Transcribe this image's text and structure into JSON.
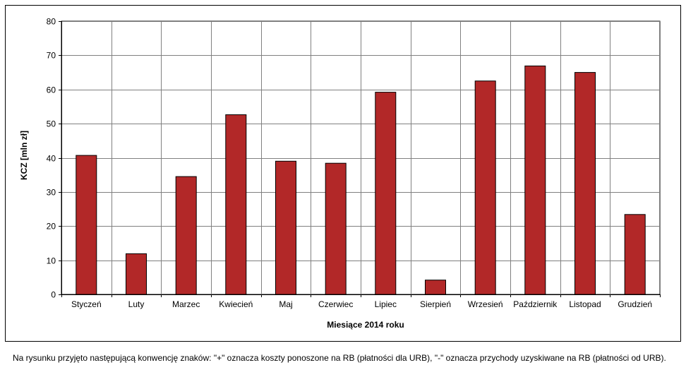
{
  "chart_data": {
    "type": "bar",
    "categories": [
      "Styczeń",
      "Luty",
      "Marzec",
      "Kwiecień",
      "Maj",
      "Czerwiec",
      "Lipiec",
      "Sierpień",
      "Wrzesień",
      "Październik",
      "Listopad",
      "Grudzień"
    ],
    "values": [
      40.7,
      11.9,
      34.5,
      52.6,
      39.0,
      38.4,
      59.2,
      4.2,
      62.5,
      66.9,
      65.0,
      23.4
    ],
    "xlabel": "Miesiące 2014 roku",
    "ylabel": "KCZ [mln zł]",
    "ylim": [
      0,
      80
    ],
    "yticks": [
      0,
      10,
      20,
      30,
      40,
      50,
      60,
      70,
      80
    ],
    "grid": true,
    "bar_color": "#b22828"
  },
  "note": "Na rysunku przyjęto następującą konwencję znaków: \"+\" oznacza koszty ponoszone na RB (płatności dla URB), \"-\" oznacza przychody uzyskiwane na RB (płatności od URB)."
}
